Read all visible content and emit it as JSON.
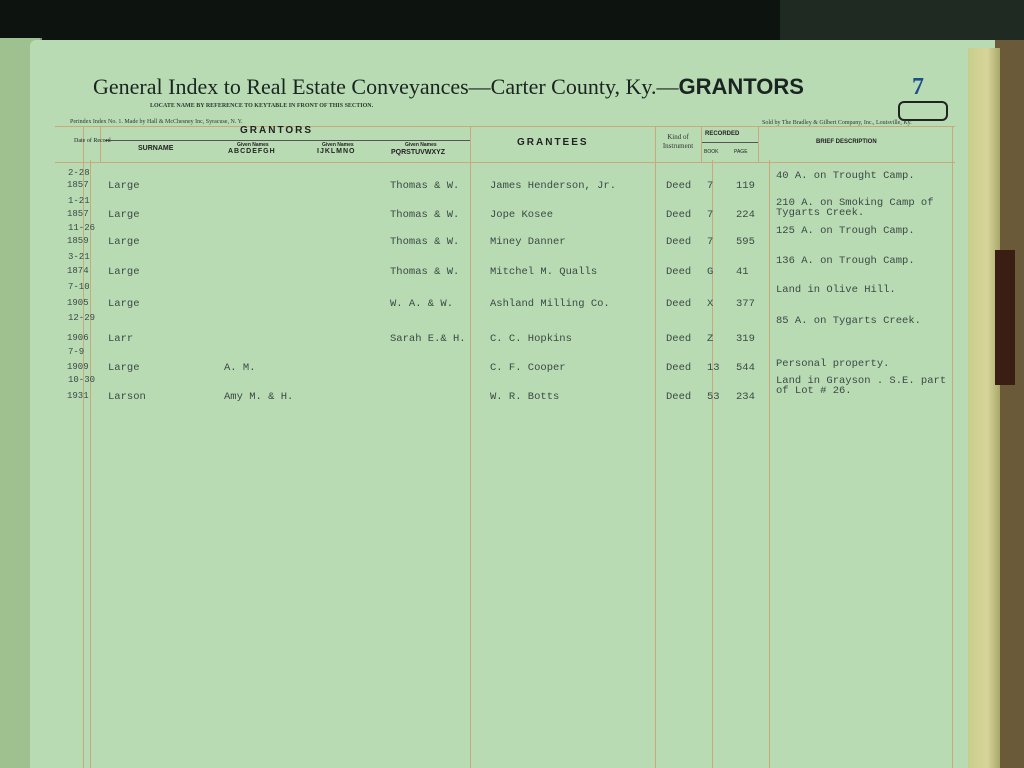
{
  "header": {
    "title_prefix": "General Index to Real Estate Conveyances—Carter County, Ky.—",
    "title_section": "GRANTORS",
    "page_number": "7",
    "instruction": "LOCATE NAME BY REFERENCE TO KEYTABLE IN FRONT OF THIS SECTION.",
    "maker": "Perindex Index No. 1. Made by Hall & McChesney Inc, Syracuse, N. Y.",
    "seller": "Sold by The Bradley & Gilbert Company, Inc., Louisville, Ky."
  },
  "columns": {
    "date": "Date of Record",
    "grantors": "GRANTORS",
    "surname": "SURNAME",
    "given_label": "Given Names",
    "given_1": "ABCDEFGH",
    "given_2": "IJKLMNO",
    "given_3": "PQRSTUVWXYZ",
    "grantees": "GRANTEES",
    "kind": "Kind of Instrument",
    "recorded": "RECORDED",
    "book": "BOOK",
    "page": "PAGE",
    "description": "BRIEF DESCRIPTION"
  },
  "rows": [
    {
      "date": "2-28",
      "year": "1857",
      "surname": "Large",
      "given_a": "",
      "given_p": "Thomas & W.",
      "grantee": "James Henderson, Jr.",
      "kind": "Deed",
      "book": "7",
      "page": "119",
      "desc1": "40 A. on Trought Camp.",
      "desc2": ""
    },
    {
      "date": "1-21",
      "year": "1857",
      "surname": "Large",
      "given_a": "",
      "given_p": "Thomas & W.",
      "grantee": "Jope Kosee",
      "kind": "Deed",
      "book": "7",
      "page": "224",
      "desc1": "210 A. on Smoking Camp of",
      "desc2": "Tygarts Creek."
    },
    {
      "date": "11-26",
      "year": "1859",
      "surname": "Large",
      "given_a": "",
      "given_p": "Thomas & W.",
      "grantee": "Miney Danner",
      "kind": "Deed",
      "book": "7",
      "page": "595",
      "desc1": "125 A. on Trough Camp.",
      "desc2": ""
    },
    {
      "date": "3-21",
      "year": "1874",
      "surname": "Large",
      "given_a": "",
      "given_p": "Thomas & W.",
      "grantee": "Mitchel M. Qualls",
      "kind": "Deed",
      "book": "G",
      "page": "41",
      "desc1": "136 A. on Trough Camp.",
      "desc2": ""
    },
    {
      "date": "7-10",
      "year": "1905",
      "surname": "Large",
      "given_a": "",
      "given_p": "W. A. & W.",
      "grantee": "Ashland Milling Co.",
      "kind": "Deed",
      "book": "X",
      "page": "377",
      "desc1": "Land in Olive Hill.",
      "desc2": ""
    },
    {
      "date": "12-29",
      "year": "1906",
      "surname": "Larr",
      "given_a": "",
      "given_p": "Sarah E.& H.",
      "grantee": "C. C. Hopkins",
      "kind": "Deed",
      "book": "Z",
      "page": "319",
      "desc1": "85 A. on Tygarts Creek.",
      "desc2": ""
    },
    {
      "date": "7-9",
      "year": "1909",
      "surname": "Large",
      "given_a": "A. M.",
      "given_p": "",
      "grantee": "C. F. Cooper",
      "kind": "Deed",
      "book": "13",
      "page": "544",
      "desc1": "Personal property.",
      "desc2": ""
    },
    {
      "date": "10-30",
      "year": "1931",
      "surname": "Larson",
      "given_a": "Amy M. & H.",
      "given_p": "",
      "grantee": "W. R. Botts",
      "kind": "Deed",
      "book": "53",
      "page": "234",
      "desc1": "Land in Grayson . S.E. part",
      "desc2": "of Lot # 26."
    }
  ]
}
